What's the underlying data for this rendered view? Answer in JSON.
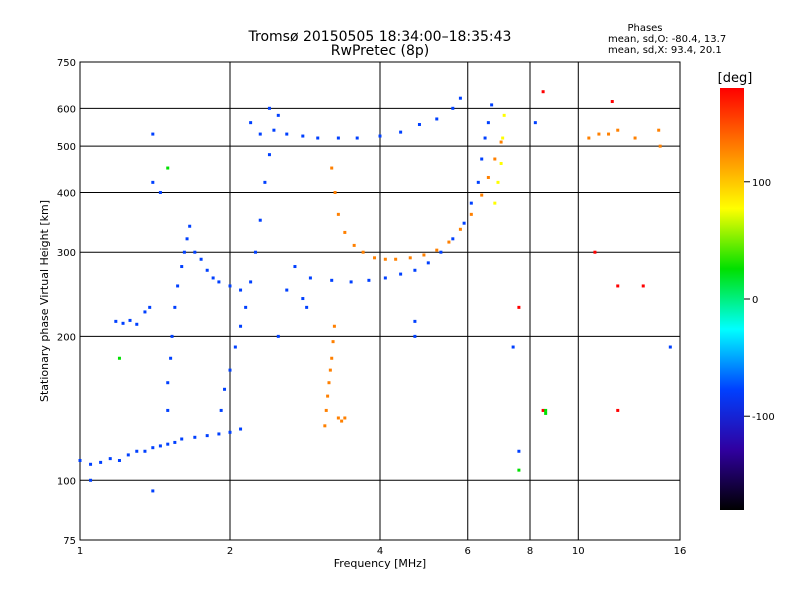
{
  "header": {
    "title_line1": "Tromsø 20150505 18:34:00–18:35:43",
    "title_line2": "RwPretec (8p)"
  },
  "info_box": {
    "heading": "Phases",
    "line1": "mean, sd,O: -80.4, 13.7",
    "line2": "mean, sd,X:  93.4, 20.1"
  },
  "chart_data": {
    "type": "scatter",
    "xlabel": "Frequency [MHz]",
    "ylabel": "Stationary phase Virtual Height [km]",
    "x_scale": "log",
    "y_scale": "log",
    "xlim": [
      1,
      16
    ],
    "ylim": [
      75,
      750
    ],
    "x_ticks": [
      1,
      2,
      4,
      6,
      8,
      10,
      16
    ],
    "y_ticks": [
      75,
      100,
      200,
      300,
      400,
      500,
      600,
      750
    ],
    "grid": true,
    "colorbar": {
      "label": "[deg]",
      "range": [
        -180,
        180
      ],
      "ticks": [
        100,
        0,
        -100
      ],
      "colors": [
        "#ff0000",
        "#ff8000",
        "#ffff00",
        "#00e000",
        "#00ffff",
        "#0040ff",
        "#3000a0",
        "#000000"
      ]
    },
    "series": [
      {
        "color_value": -95,
        "points": [
          [
            1.0,
            110
          ],
          [
            1.05,
            108
          ],
          [
            1.1,
            109
          ],
          [
            1.15,
            111
          ],
          [
            1.2,
            110
          ],
          [
            1.25,
            113
          ],
          [
            1.3,
            115
          ],
          [
            1.35,
            115
          ],
          [
            1.4,
            117
          ],
          [
            1.45,
            118
          ],
          [
            1.5,
            119
          ],
          [
            1.55,
            120
          ],
          [
            1.6,
            122
          ],
          [
            1.7,
            123
          ],
          [
            1.8,
            124
          ],
          [
            1.9,
            125
          ],
          [
            2.0,
            126
          ],
          [
            2.1,
            128
          ],
          [
            1.18,
            215
          ],
          [
            1.22,
            213
          ],
          [
            1.26,
            216
          ],
          [
            1.3,
            212
          ],
          [
            1.35,
            225
          ],
          [
            1.38,
            230
          ]
        ]
      },
      {
        "color_value": -80,
        "points": [
          [
            1.5,
            140
          ],
          [
            1.5,
            160
          ],
          [
            1.52,
            180
          ],
          [
            1.53,
            200
          ],
          [
            1.55,
            230
          ],
          [
            1.57,
            255
          ],
          [
            1.6,
            280
          ],
          [
            1.62,
            300
          ],
          [
            1.64,
            320
          ],
          [
            1.66,
            340
          ],
          [
            1.7,
            300
          ],
          [
            1.75,
            290
          ],
          [
            1.8,
            275
          ],
          [
            1.85,
            265
          ],
          [
            1.9,
            260
          ],
          [
            2.0,
            255
          ],
          [
            2.1,
            250
          ],
          [
            1.92,
            140
          ],
          [
            1.95,
            155
          ],
          [
            2.0,
            170
          ],
          [
            2.05,
            190
          ],
          [
            2.1,
            210
          ],
          [
            2.15,
            230
          ],
          [
            2.2,
            260
          ],
          [
            2.25,
            300
          ],
          [
            2.3,
            350
          ],
          [
            2.35,
            420
          ],
          [
            2.4,
            480
          ],
          [
            2.45,
            540
          ],
          [
            2.5,
            580
          ],
          [
            2.2,
            560
          ],
          [
            2.3,
            530
          ],
          [
            2.4,
            600
          ],
          [
            2.5,
            200
          ],
          [
            2.6,
            250
          ],
          [
            2.7,
            280
          ],
          [
            2.8,
            240
          ],
          [
            2.85,
            230
          ]
        ]
      },
      {
        "color_value": -95,
        "points": [
          [
            2.6,
            530
          ],
          [
            2.8,
            525
          ],
          [
            3.0,
            520
          ],
          [
            3.3,
            520
          ],
          [
            3.6,
            520
          ],
          [
            4.0,
            525
          ],
          [
            4.4,
            535
          ],
          [
            4.8,
            555
          ],
          [
            5.2,
            570
          ],
          [
            5.6,
            600
          ],
          [
            5.8,
            630
          ],
          [
            2.9,
            265
          ],
          [
            3.2,
            262
          ],
          [
            3.5,
            260
          ],
          [
            3.8,
            262
          ],
          [
            4.1,
            265
          ],
          [
            4.4,
            270
          ],
          [
            4.7,
            275
          ],
          [
            5.0,
            285
          ],
          [
            5.3,
            300
          ],
          [
            5.6,
            320
          ],
          [
            5.9,
            345
          ],
          [
            6.1,
            380
          ],
          [
            6.3,
            420
          ],
          [
            6.4,
            470
          ],
          [
            6.5,
            520
          ],
          [
            6.6,
            560
          ],
          [
            6.7,
            610
          ]
        ]
      },
      {
        "color_value": 110,
        "points": [
          [
            3.1,
            130
          ],
          [
            3.12,
            140
          ],
          [
            3.14,
            150
          ],
          [
            3.16,
            160
          ],
          [
            3.18,
            170
          ],
          [
            3.2,
            180
          ],
          [
            3.22,
            195
          ],
          [
            3.24,
            210
          ],
          [
            3.3,
            135
          ],
          [
            3.35,
            133
          ],
          [
            3.4,
            135
          ]
        ]
      },
      {
        "color_value": 130,
        "points": [
          [
            3.2,
            450
          ],
          [
            3.25,
            400
          ],
          [
            3.3,
            360
          ],
          [
            3.4,
            330
          ],
          [
            3.55,
            310
          ],
          [
            3.7,
            300
          ],
          [
            3.9,
            292
          ],
          [
            4.1,
            290
          ],
          [
            4.3,
            290
          ],
          [
            4.6,
            292
          ],
          [
            4.9,
            296
          ],
          [
            5.2,
            303
          ],
          [
            5.5,
            315
          ],
          [
            5.8,
            335
          ],
          [
            6.1,
            360
          ],
          [
            6.4,
            395
          ],
          [
            6.6,
            430
          ],
          [
            6.8,
            470
          ],
          [
            7.0,
            510
          ]
        ]
      },
      {
        "color_value": 100,
        "points": [
          [
            6.8,
            380
          ],
          [
            6.9,
            420
          ],
          [
            7.0,
            460
          ],
          [
            7.05,
            520
          ],
          [
            7.1,
            580
          ]
        ]
      },
      {
        "color_value": 120,
        "points": [
          [
            10.5,
            520
          ],
          [
            11.0,
            530
          ],
          [
            11.5,
            530
          ],
          [
            12.0,
            540
          ],
          [
            13.0,
            520
          ],
          [
            14.5,
            540
          ],
          [
            14.6,
            500
          ]
        ]
      },
      {
        "color_value": 170,
        "points": [
          [
            8.5,
            650
          ],
          [
            11.7,
            620
          ],
          [
            12.0,
            255
          ],
          [
            13.5,
            255
          ],
          [
            12.0,
            140
          ],
          [
            8.5,
            140
          ],
          [
            10.8,
            300
          ],
          [
            7.6,
            230
          ]
        ]
      },
      {
        "color_value": 30,
        "points": [
          [
            1.5,
            450
          ],
          [
            8.6,
            140
          ],
          [
            8.6,
            138
          ],
          [
            7.6,
            105
          ],
          [
            1.2,
            180
          ]
        ]
      },
      {
        "color_value": -100,
        "points": [
          [
            1.4,
            530
          ],
          [
            1.4,
            420
          ],
          [
            1.45,
            400
          ],
          [
            4.7,
            200
          ],
          [
            4.7,
            215
          ],
          [
            7.4,
            190
          ],
          [
            7.6,
            115
          ],
          [
            8.2,
            560
          ],
          [
            1.4,
            95
          ],
          [
            1.05,
            100
          ],
          [
            15.3,
            190
          ]
        ]
      }
    ]
  }
}
